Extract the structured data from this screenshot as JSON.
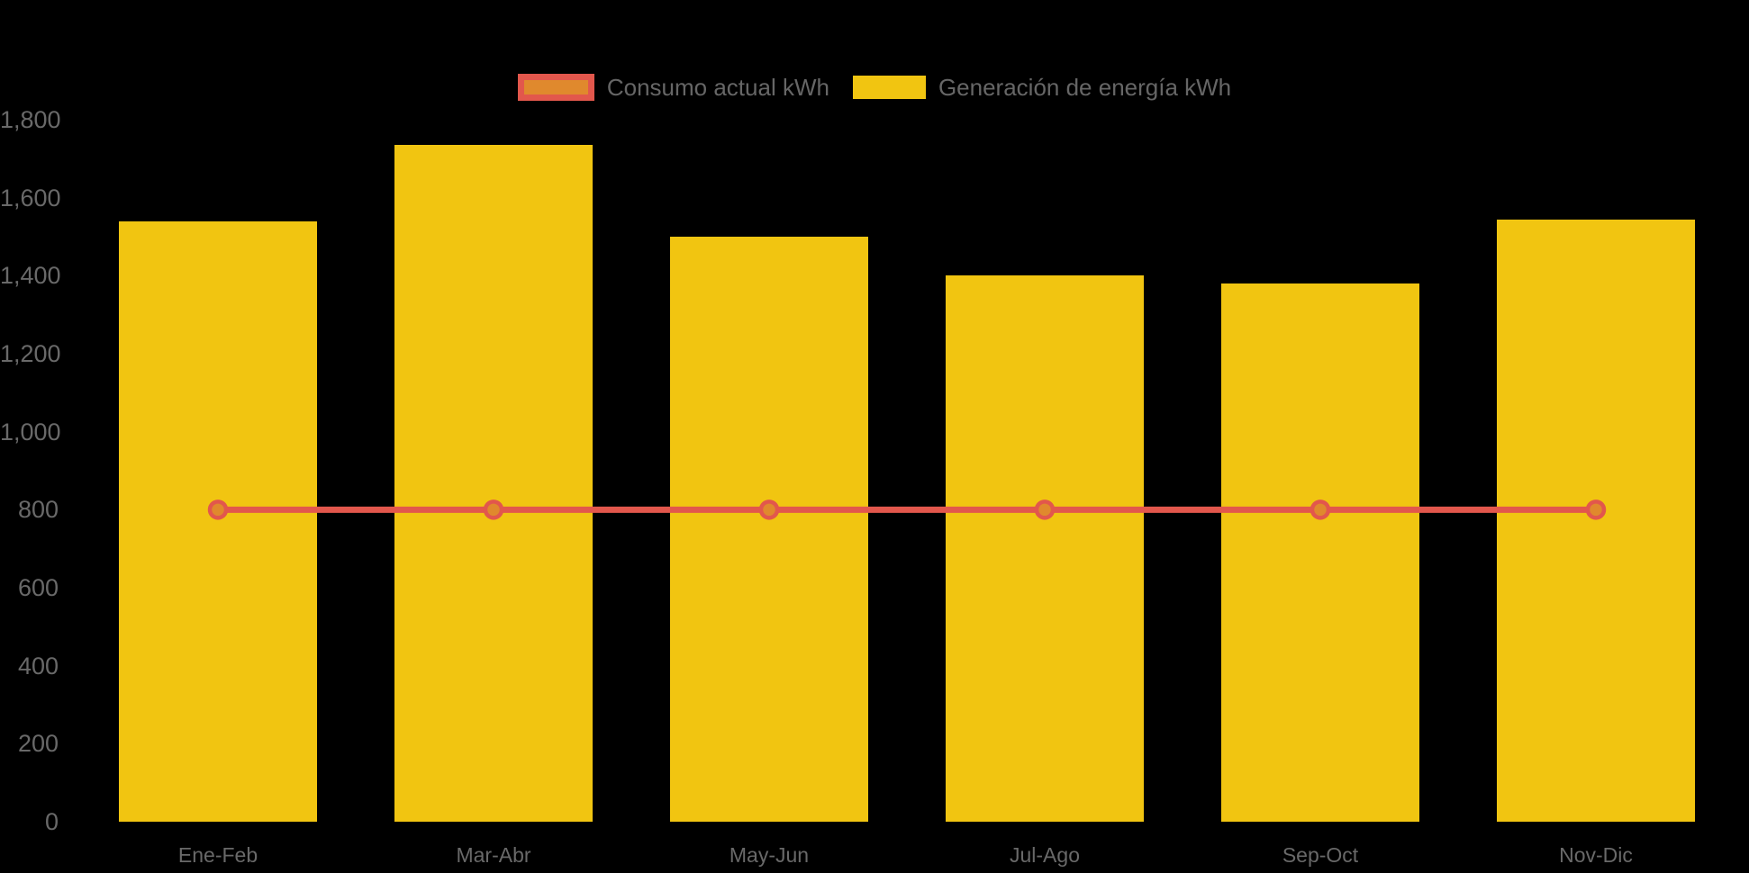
{
  "legend": {
    "items": [
      {
        "id": "consumo",
        "label": "Consumo actual kWh",
        "swatch": "line"
      },
      {
        "id": "generacion",
        "label": "Generación de energía kWh",
        "swatch": "bar"
      }
    ]
  },
  "colors": {
    "background": "#000000",
    "bar_fill": "#F1C511",
    "line_stroke": "#E2574C",
    "marker_fill": "#E0892D",
    "marker_stroke": "#E2574C",
    "legend_line_fill": "#E0892D",
    "legend_line_border": "#E2574C",
    "legend_bar_fill": "#F1C511",
    "legend_text": "#666666",
    "axis_text": "#696969"
  },
  "chart_data": {
    "type": "bar",
    "title": "",
    "xlabel": "",
    "ylabel": "",
    "categories": [
      "Ene-Feb",
      "Mar-Abr",
      "May-Jun",
      "Jul-Ago",
      "Sep-Oct",
      "Nov-Dic"
    ],
    "series": [
      {
        "name": "Consumo actual kWh",
        "type": "line",
        "values": [
          800,
          800,
          800,
          800,
          800,
          800
        ]
      },
      {
        "name": "Generación de energía kWh",
        "type": "bar",
        "values": [
          1540,
          1735,
          1500,
          1400,
          1380,
          1545
        ]
      }
    ],
    "ylim": [
      0,
      1800
    ],
    "ytick_step": 200,
    "ytick_labels": [
      "0",
      "200",
      "400",
      "600",
      "800",
      "1,000",
      "1,200",
      "1,400",
      "1,600",
      "1,800"
    ],
    "grid": false,
    "legend_position": "top"
  }
}
